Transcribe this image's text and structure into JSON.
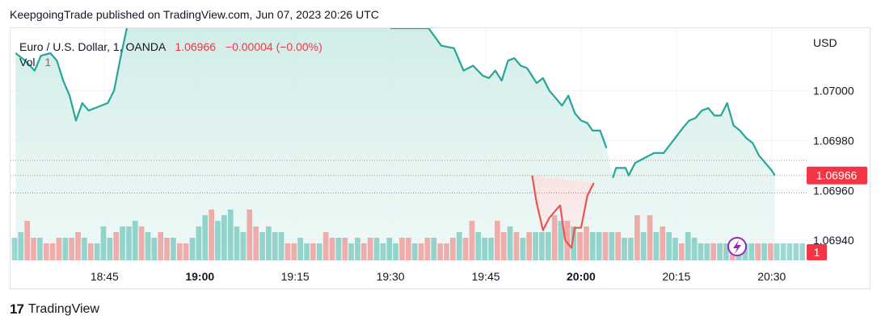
{
  "header": {
    "published_line": "KeepgoingTrade published on TradingView.com, Jun 07, 2023 20:26 UTC"
  },
  "legend": {
    "symbol": "Euro / U.S. Dollar, 1, OANDA",
    "price": "1.06966",
    "change": "−0.00004 (−0.00%)",
    "vol_label": "Vol",
    "vol_value": "1"
  },
  "footer": {
    "brand": "TradingView",
    "brand_mark": "17"
  },
  "colors": {
    "up": "#26a69a",
    "down": "#ef5350",
    "area_fill": "#e3f4f1",
    "label_red": "#f23645"
  },
  "chart_data": {
    "type": "line",
    "title": "Euro / U.S. Dollar, 1, OANDA",
    "currency": "USD",
    "ylim": [
      1.06932,
      1.07025
    ],
    "y_ticks": [
      1.0694,
      1.0696,
      1.0698,
      1.07
    ],
    "y_tick_labels": [
      "1.06940",
      "1.06960",
      "1.06980",
      "1.07000"
    ],
    "x_ticks": [
      {
        "label": "18:45",
        "t": 45,
        "bold": false
      },
      {
        "label": "19:00",
        "t": 60,
        "bold": true
      },
      {
        "label": "19:15",
        "t": 75,
        "bold": false
      },
      {
        "label": "19:30",
        "t": 90,
        "bold": false
      },
      {
        "label": "19:45",
        "t": 105,
        "bold": false
      },
      {
        "label": "20:00",
        "t": 120,
        "bold": true
      },
      {
        "label": "20:15",
        "t": 135,
        "bold": false
      },
      {
        "label": "20:30",
        "t": 150,
        "bold": false
      }
    ],
    "x_range_minutes_from_1800": [
      30.2,
      155.5
    ],
    "last_price_label": "1.06966",
    "volume_label": "1",
    "price_series": {
      "up_points": [
        [
          31,
          1.07015
        ],
        [
          32.5,
          1.07012
        ],
        [
          34,
          1.07008
        ],
        [
          35,
          1.07014
        ],
        [
          36.5,
          1.07015
        ],
        [
          37.5,
          1.07012
        ],
        [
          38.5,
          1.07004
        ],
        [
          39.5,
          1.06998
        ],
        [
          40.5,
          1.06988
        ],
        [
          41.5,
          1.06995
        ],
        [
          42.5,
          1.06992
        ],
        [
          43.5,
          1.06993
        ],
        [
          44.5,
          1.06994
        ],
        [
          45.5,
          1.06995
        ],
        [
          46.5,
          1.07
        ],
        [
          47.5,
          1.07013
        ],
        [
          48.5,
          1.07025
        ],
        [
          90,
          1.07025
        ],
        [
          93,
          1.07025
        ],
        [
          96,
          1.07025
        ],
        [
          98,
          1.07018
        ],
        [
          100,
          1.07017
        ],
        [
          101.5,
          1.07008
        ],
        [
          103,
          1.0701
        ],
        [
          104.5,
          1.07006
        ],
        [
          105.5,
          1.07005
        ],
        [
          106.5,
          1.07008
        ],
        [
          107.5,
          1.07004
        ],
        [
          108.5,
          1.07012
        ],
        [
          109.5,
          1.07013
        ],
        [
          110.5,
          1.0701
        ],
        [
          111.5,
          1.07009
        ],
        [
          112.5,
          1.07005
        ],
        [
          113,
          1.07003
        ],
        [
          114,
          1.07005
        ],
        [
          115,
          1.07
        ],
        [
          116,
          1.06997
        ],
        [
          117,
          1.06994
        ],
        [
          118,
          1.06998
        ],
        [
          119,
          1.06991
        ],
        [
          120,
          1.06988
        ],
        [
          121,
          1.06987
        ],
        [
          121.8,
          1.06984
        ],
        [
          122,
          1.06984
        ],
        [
          123,
          1.06984
        ],
        [
          124,
          1.06977
        ],
        [
          125,
          1.06965
        ],
        [
          125.5,
          1.06969
        ],
        [
          127,
          1.06969
        ],
        [
          127.5,
          1.06966
        ],
        [
          128.5,
          1.06971
        ],
        [
          130,
          1.06973
        ],
        [
          131.5,
          1.06975
        ],
        [
          133,
          1.06975
        ],
        [
          134.5,
          1.0698
        ],
        [
          136,
          1.06985
        ],
        [
          137,
          1.06988
        ],
        [
          138,
          1.06989
        ],
        [
          139,
          1.06992
        ],
        [
          140,
          1.06993
        ],
        [
          141,
          1.0699
        ],
        [
          142,
          1.0699
        ],
        [
          143,
          1.06995
        ],
        [
          144,
          1.06986
        ],
        [
          145,
          1.06984
        ],
        [
          146,
          1.06981
        ],
        [
          147,
          1.06979
        ],
        [
          148,
          1.06974
        ],
        [
          149,
          1.06971
        ],
        [
          150,
          1.06968
        ],
        [
          150.5,
          1.06966
        ]
      ],
      "down_points": [
        [
          112.3,
          1.06966
        ],
        [
          113,
          1.06955
        ],
        [
          114,
          1.06944
        ],
        [
          115,
          1.06949
        ],
        [
          116,
          1.06952
        ],
        [
          116.7,
          1.06954
        ],
        [
          117.5,
          1.0694
        ],
        [
          118.5,
          1.06937
        ],
        [
          119,
          1.06945
        ],
        [
          120,
          1.06945
        ],
        [
          121,
          1.06958
        ],
        [
          122,
          1.06963
        ]
      ]
    },
    "reference_lines": [
      {
        "value": 1.06972,
        "color": "#ef5350",
        "style": "dotted"
      },
      {
        "value": 1.06966,
        "color": "#ef5350",
        "style": "dotted"
      },
      {
        "value": 1.06959,
        "color": "#2962ff",
        "style": "dotted"
      }
    ],
    "volume_series": {
      "bars": [
        [
          "u",
          4
        ],
        [
          "u",
          5
        ],
        [
          "d",
          7
        ],
        [
          "d",
          4
        ],
        [
          "u",
          4
        ],
        [
          "d",
          3
        ],
        [
          "d",
          3
        ],
        [
          "d",
          4
        ],
        [
          "u",
          4
        ],
        [
          "d",
          4
        ],
        [
          "d",
          5
        ],
        [
          "u",
          4
        ],
        [
          "d",
          3
        ],
        [
          "u",
          3
        ],
        [
          "u",
          6
        ],
        [
          "u",
          4
        ],
        [
          "d",
          5
        ],
        [
          "u",
          6
        ],
        [
          "u",
          6
        ],
        [
          "u",
          7
        ],
        [
          "d",
          6
        ],
        [
          "u",
          5
        ],
        [
          "u",
          4
        ],
        [
          "d",
          5
        ],
        [
          "d",
          4
        ],
        [
          "u",
          4
        ],
        [
          "d",
          3
        ],
        [
          "d",
          3
        ],
        [
          "u",
          4
        ],
        [
          "u",
          6
        ],
        [
          "u",
          8
        ],
        [
          "d",
          9
        ],
        [
          "u",
          7
        ],
        [
          "u",
          8
        ],
        [
          "u",
          9
        ],
        [
          "u",
          6
        ],
        [
          "u",
          5
        ],
        [
          "d",
          9
        ],
        [
          "d",
          6
        ],
        [
          "u",
          5
        ],
        [
          "u",
          6
        ],
        [
          "u",
          5
        ],
        [
          "u",
          5
        ],
        [
          "d",
          3
        ],
        [
          "d",
          3
        ],
        [
          "u",
          4
        ],
        [
          "u",
          3
        ],
        [
          "d",
          3
        ],
        [
          "u",
          3
        ],
        [
          "d",
          5
        ],
        [
          "d",
          4
        ],
        [
          "u",
          4
        ],
        [
          "d",
          4
        ],
        [
          "u",
          3
        ],
        [
          "u",
          4
        ],
        [
          "d",
          3
        ],
        [
          "d",
          4
        ],
        [
          "u",
          4
        ],
        [
          "u",
          3
        ],
        [
          "u",
          4
        ],
        [
          "u",
          3
        ],
        [
          "d",
          4
        ],
        [
          "d",
          4
        ],
        [
          "u",
          3
        ],
        [
          "d",
          3
        ],
        [
          "d",
          4
        ],
        [
          "u",
          4
        ],
        [
          "d",
          3
        ],
        [
          "d",
          3
        ],
        [
          "d",
          4
        ],
        [
          "u",
          5
        ],
        [
          "d",
          4
        ],
        [
          "d",
          7
        ],
        [
          "u",
          5
        ],
        [
          "u",
          4
        ],
        [
          "u",
          4
        ],
        [
          "d",
          7
        ],
        [
          "d",
          5
        ],
        [
          "u",
          6
        ],
        [
          "d",
          5
        ],
        [
          "u",
          4
        ],
        [
          "d",
          5
        ],
        [
          "u",
          5
        ],
        [
          "u",
          5
        ],
        [
          "u",
          5
        ],
        [
          "d",
          8
        ],
        [
          "u",
          7
        ],
        [
          "d",
          7
        ],
        [
          "u",
          6
        ],
        [
          "d",
          5
        ],
        [
          "d",
          6
        ],
        [
          "u",
          5
        ],
        [
          "u",
          5
        ],
        [
          "d",
          5
        ],
        [
          "u",
          5
        ],
        [
          "d",
          5
        ],
        [
          "u",
          4
        ],
        [
          "u",
          4
        ],
        [
          "d",
          8
        ],
        [
          "u",
          5
        ],
        [
          "d",
          8
        ],
        [
          "u",
          5
        ],
        [
          "d",
          6
        ],
        [
          "u",
          5
        ],
        [
          "u",
          4
        ],
        [
          "d",
          3
        ],
        [
          "u",
          5
        ],
        [
          "u",
          4
        ],
        [
          "u",
          3
        ],
        [
          "u",
          3
        ],
        [
          "d",
          3
        ],
        [
          "u",
          3
        ],
        [
          "u",
          3
        ],
        [
          "d",
          3
        ],
        [
          "u",
          4
        ],
        [
          "u",
          3
        ],
        [
          "u",
          3
        ],
        [
          "d",
          3
        ],
        [
          "u",
          3
        ],
        [
          "d",
          3
        ],
        [
          "u",
          3
        ],
        [
          "u",
          3
        ],
        [
          "u",
          3
        ],
        [
          "u",
          3
        ],
        [
          "u",
          3
        ]
      ]
    }
  }
}
